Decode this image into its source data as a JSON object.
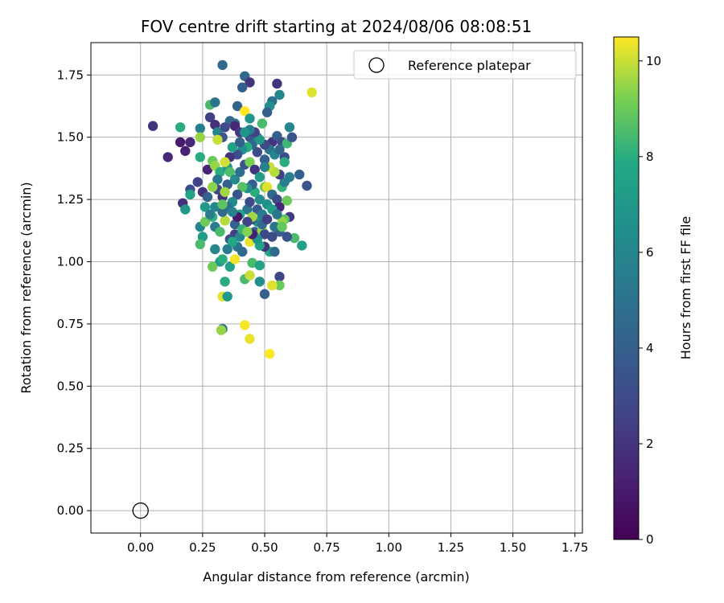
{
  "chart_data": {
    "type": "scatter",
    "title": "FOV centre drift starting at 2024/08/06 08:08:51",
    "xlabel": "Angular distance from reference (arcmin)",
    "ylabel": "Rotation from reference (arcmin)",
    "xlim": [
      -0.2,
      1.78
    ],
    "ylim": [
      -0.09,
      1.88
    ],
    "xticks": [
      0.0,
      0.25,
      0.5,
      0.75,
      1.0,
      1.25,
      1.5,
      1.75
    ],
    "xtick_labels": [
      "0.00",
      "0.25",
      "0.50",
      "0.75",
      "1.00",
      "1.25",
      "1.50",
      "1.75"
    ],
    "yticks": [
      0.0,
      0.25,
      0.5,
      0.75,
      1.0,
      1.25,
      1.5,
      1.75
    ],
    "ytick_labels": [
      "0.00",
      "0.25",
      "0.50",
      "0.75",
      "1.00",
      "1.25",
      "1.50",
      "1.75"
    ],
    "grid": true,
    "colormap": "viridis",
    "colorbar": {
      "label": "Hours from first FF file",
      "range": [
        0,
        10.5
      ],
      "ticks": [
        0,
        2,
        4,
        6,
        8,
        10
      ],
      "tick_labels": [
        "0",
        "2",
        "4",
        "6",
        "8",
        "10"
      ]
    },
    "reference": {
      "name": "Reference platepar",
      "x": 0.0,
      "y": 0.0
    },
    "legend": {
      "position": "top-right",
      "entries": [
        "Reference platepar"
      ]
    },
    "points": [
      [
        0.05,
        1.545,
        2.0
      ],
      [
        0.11,
        1.42,
        1.5
      ],
      [
        0.16,
        1.48,
        1.0
      ],
      [
        0.18,
        1.445,
        1.2
      ],
      [
        0.2,
        1.48,
        1.5
      ],
      [
        0.17,
        1.235,
        1.8
      ],
      [
        0.2,
        1.29,
        3.0
      ],
      [
        0.23,
        1.32,
        2.5
      ],
      [
        0.25,
        1.28,
        2.0
      ],
      [
        0.27,
        1.37,
        1.3
      ],
      [
        0.16,
        1.54,
        8.0
      ],
      [
        0.24,
        1.535,
        5.5
      ],
      [
        0.24,
        1.5,
        9.5
      ],
      [
        0.24,
        1.42,
        8.0
      ],
      [
        0.18,
        1.21,
        7.0
      ],
      [
        0.2,
        1.27,
        7.5
      ],
      [
        0.24,
        1.14,
        6.0
      ],
      [
        0.25,
        1.1,
        7.2
      ],
      [
        0.24,
        1.07,
        8.5
      ],
      [
        0.26,
        1.16,
        9.0
      ],
      [
        0.28,
        1.63,
        8.5
      ],
      [
        0.3,
        1.64,
        5.0
      ],
      [
        0.28,
        1.58,
        2.5
      ],
      [
        0.3,
        1.55,
        1.8
      ],
      [
        0.31,
        1.52,
        6.0
      ],
      [
        0.33,
        1.5,
        3.5
      ],
      [
        0.31,
        1.49,
        10.0
      ],
      [
        0.29,
        1.405,
        9.0
      ],
      [
        0.3,
        1.385,
        9.5
      ],
      [
        0.32,
        1.36,
        8.0
      ],
      [
        0.35,
        1.38,
        7.0
      ],
      [
        0.35,
        1.31,
        4.0
      ],
      [
        0.31,
        1.29,
        3.0
      ],
      [
        0.3,
        1.22,
        6.0
      ],
      [
        0.33,
        1.26,
        2.0
      ],
      [
        0.34,
        1.28,
        9.6
      ],
      [
        0.34,
        1.165,
        9.8
      ],
      [
        0.33,
        1.2,
        4.5
      ],
      [
        0.3,
        1.14,
        5.5
      ],
      [
        0.32,
        1.12,
        8.5
      ],
      [
        0.29,
        1.18,
        8.2
      ],
      [
        0.3,
        1.05,
        6.0
      ],
      [
        0.32,
        1.0,
        7.0
      ],
      [
        0.33,
        1.01,
        8.0
      ],
      [
        0.35,
        1.05,
        5.5
      ],
      [
        0.29,
        0.98,
        9.0
      ],
      [
        0.36,
        0.98,
        7.5
      ],
      [
        0.33,
        0.86,
        10.2
      ],
      [
        0.35,
        0.86,
        7.0
      ],
      [
        0.34,
        0.92,
        8.0
      ],
      [
        0.33,
        0.73,
        5.0
      ],
      [
        0.325,
        0.725,
        9.5
      ],
      [
        0.38,
        1.01,
        10.4
      ],
      [
        0.42,
        0.93,
        8.5
      ],
      [
        0.44,
        0.945,
        10.0
      ],
      [
        0.45,
        0.995,
        8.5
      ],
      [
        0.48,
        0.985,
        7.5
      ],
      [
        0.48,
        0.92,
        6.5
      ],
      [
        0.5,
        0.87,
        4.0
      ],
      [
        0.44,
        0.69,
        10.3
      ],
      [
        0.42,
        0.745,
        10.4
      ],
      [
        0.52,
        0.63,
        10.5
      ],
      [
        0.56,
        0.94,
        2.8
      ],
      [
        0.56,
        0.905,
        9.0
      ],
      [
        0.53,
        0.905,
        10.2
      ],
      [
        0.33,
        1.79,
        4.5
      ],
      [
        0.42,
        1.745,
        4.5
      ],
      [
        0.44,
        1.72,
        2.0
      ],
      [
        0.41,
        1.7,
        4.0
      ],
      [
        0.55,
        1.715,
        2.0
      ],
      [
        0.56,
        1.67,
        6.0
      ],
      [
        0.53,
        1.645,
        5.0
      ],
      [
        0.52,
        1.625,
        6.5
      ],
      [
        0.39,
        1.625,
        4.2
      ],
      [
        0.42,
        1.605,
        10.5
      ],
      [
        0.44,
        1.575,
        6.8
      ],
      [
        0.38,
        1.555,
        5.0
      ],
      [
        0.36,
        1.565,
        4.5
      ],
      [
        0.34,
        1.54,
        3.0
      ],
      [
        0.38,
        1.545,
        1.5
      ],
      [
        0.4,
        1.52,
        2.2
      ],
      [
        0.44,
        1.5,
        3.5
      ],
      [
        0.47,
        1.5,
        4.8
      ],
      [
        0.49,
        1.555,
        8.5
      ],
      [
        0.51,
        1.6,
        4.0
      ],
      [
        0.53,
        1.48,
        2.0
      ],
      [
        0.55,
        1.505,
        4.0
      ],
      [
        0.57,
        1.48,
        3.0
      ],
      [
        0.59,
        1.475,
        8.3
      ],
      [
        0.61,
        1.5,
        3.5
      ],
      [
        0.6,
        1.54,
        6.0
      ],
      [
        0.58,
        1.42,
        3.0
      ],
      [
        0.6,
        1.34,
        5.5
      ],
      [
        0.64,
        1.35,
        4.0
      ],
      [
        0.67,
        1.305,
        3.5
      ],
      [
        0.69,
        1.68,
        10.2
      ],
      [
        0.65,
        1.065,
        7.5
      ],
      [
        0.62,
        1.095,
        8.5
      ],
      [
        0.6,
        1.18,
        2.2
      ],
      [
        0.58,
        1.17,
        8.8
      ],
      [
        0.57,
        1.16,
        9.5
      ],
      [
        0.55,
        1.135,
        7.0
      ],
      [
        0.56,
        1.12,
        4.0
      ],
      [
        0.54,
        1.14,
        5.0
      ],
      [
        0.53,
        1.1,
        3.0
      ],
      [
        0.52,
        1.04,
        7.8
      ],
      [
        0.54,
        1.04,
        4.5
      ],
      [
        0.5,
        1.06,
        2.0
      ],
      [
        0.48,
        1.065,
        7.5
      ],
      [
        0.44,
        1.08,
        10.3
      ],
      [
        0.42,
        1.12,
        9.0
      ],
      [
        0.46,
        1.12,
        4.0
      ],
      [
        0.49,
        1.125,
        9.5
      ],
      [
        0.5,
        1.11,
        3.0
      ],
      [
        0.47,
        1.16,
        7.0
      ],
      [
        0.45,
        1.17,
        3.5
      ],
      [
        0.43,
        1.21,
        5.0
      ],
      [
        0.4,
        1.19,
        7.5
      ],
      [
        0.38,
        1.15,
        4.2
      ],
      [
        0.38,
        1.11,
        2.5
      ],
      [
        0.36,
        1.09,
        3.2
      ],
      [
        0.4,
        1.1,
        6.0
      ],
      [
        0.44,
        1.24,
        3.0
      ],
      [
        0.46,
        1.28,
        8.0
      ],
      [
        0.48,
        1.25,
        6.5
      ],
      [
        0.5,
        1.3,
        9.0
      ],
      [
        0.51,
        1.3,
        10.2
      ],
      [
        0.53,
        1.27,
        4.5
      ],
      [
        0.55,
        1.25,
        3.0
      ],
      [
        0.56,
        1.22,
        1.5
      ],
      [
        0.57,
        1.3,
        8.2
      ],
      [
        0.58,
        1.32,
        5.5
      ],
      [
        0.59,
        1.245,
        9.0
      ],
      [
        0.56,
        1.35,
        2.5
      ],
      [
        0.54,
        1.36,
        9.8
      ],
      [
        0.52,
        1.38,
        10.0
      ],
      [
        0.5,
        1.41,
        4.0
      ],
      [
        0.47,
        1.44,
        3.0
      ],
      [
        0.45,
        1.47,
        4.5
      ],
      [
        0.43,
        1.46,
        8.0
      ],
      [
        0.41,
        1.45,
        6.5
      ],
      [
        0.39,
        1.43,
        3.2
      ],
      [
        0.37,
        1.46,
        7.5
      ],
      [
        0.36,
        1.42,
        2.0
      ],
      [
        0.34,
        1.4,
        10.1
      ],
      [
        0.36,
        1.36,
        8.6
      ],
      [
        0.38,
        1.33,
        6.2
      ],
      [
        0.4,
        1.36,
        4.8
      ],
      [
        0.42,
        1.39,
        3.5
      ],
      [
        0.44,
        1.4,
        9.2
      ],
      [
        0.46,
        1.37,
        2.0
      ],
      [
        0.48,
        1.34,
        7.2
      ],
      [
        0.5,
        1.38,
        5.8
      ],
      [
        0.45,
        1.31,
        4.0
      ],
      [
        0.43,
        1.295,
        6.5
      ],
      [
        0.41,
        1.3,
        8.7
      ],
      [
        0.39,
        1.27,
        3.5
      ],
      [
        0.37,
        1.24,
        6.3
      ],
      [
        0.35,
        1.22,
        4.8
      ],
      [
        0.33,
        1.23,
        8.8
      ],
      [
        0.31,
        1.33,
        5.2
      ],
      [
        0.29,
        1.3,
        9.4
      ],
      [
        0.27,
        1.26,
        4.2
      ],
      [
        0.26,
        1.22,
        7.1
      ],
      [
        0.28,
        1.19,
        5.6
      ],
      [
        0.47,
        1.21,
        3.8
      ],
      [
        0.49,
        1.19,
        5.4
      ],
      [
        0.51,
        1.23,
        6.6
      ],
      [
        0.45,
        1.18,
        9.6
      ],
      [
        0.43,
        1.16,
        2.6
      ],
      [
        0.41,
        1.13,
        8.2
      ],
      [
        0.39,
        1.06,
        5.0
      ],
      [
        0.37,
        1.08,
        7.8
      ],
      [
        0.49,
        1.15,
        4.6
      ],
      [
        0.51,
        1.17,
        2.4
      ],
      [
        0.53,
        1.21,
        7.4
      ],
      [
        0.55,
        1.19,
        5.2
      ],
      [
        0.57,
        1.14,
        8.9
      ],
      [
        0.59,
        1.1,
        3.4
      ],
      [
        0.47,
        1.09,
        6.8
      ],
      [
        0.45,
        1.11,
        1.2
      ],
      [
        0.43,
        1.12,
        9.3
      ],
      [
        0.41,
        1.04,
        4.6
      ],
      [
        0.39,
        1.18,
        0.8
      ],
      [
        0.37,
        1.2,
        5.7
      ],
      [
        0.52,
        1.45,
        5.0
      ],
      [
        0.54,
        1.43,
        6.0
      ],
      [
        0.56,
        1.45,
        4.4
      ],
      [
        0.58,
        1.4,
        8.0
      ],
      [
        0.5,
        1.47,
        3.0
      ],
      [
        0.48,
        1.49,
        7.0
      ],
      [
        0.46,
        1.52,
        2.5
      ],
      [
        0.44,
        1.53,
        5.5
      ],
      [
        0.42,
        1.52,
        6.8
      ],
      [
        0.4,
        1.48,
        4.0
      ]
    ]
  }
}
